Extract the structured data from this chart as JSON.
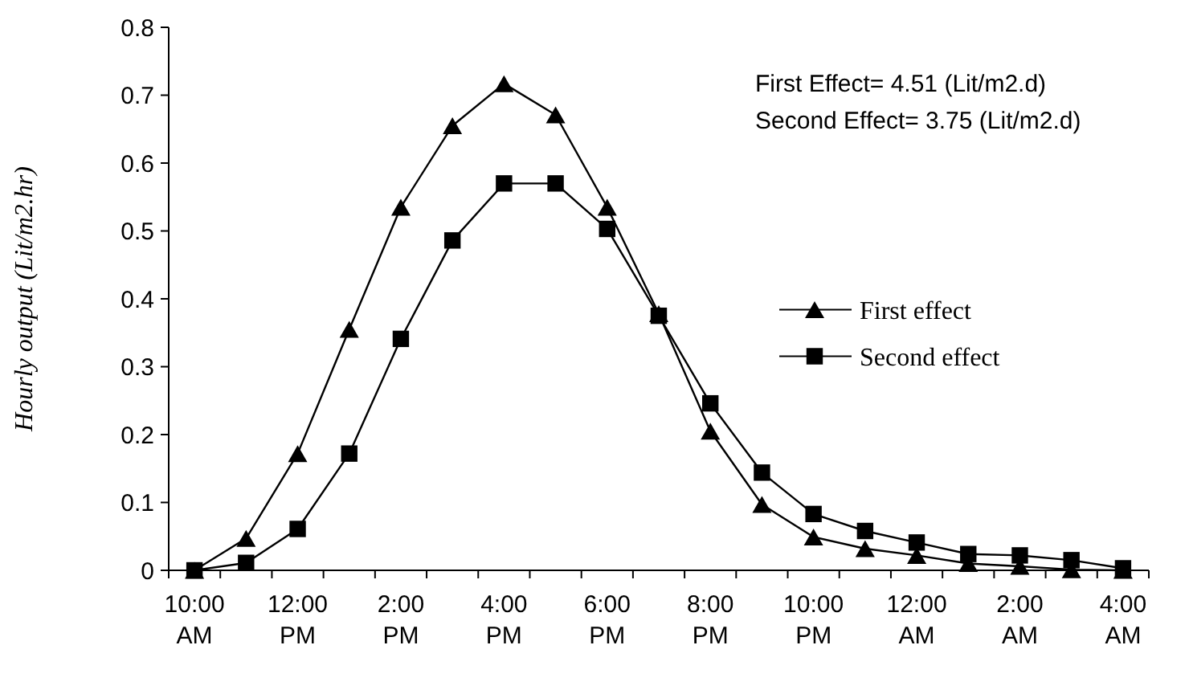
{
  "chart_data": {
    "type": "line",
    "ylabel": "Hourly output (Lit/m2.hr)",
    "categories": [
      "10:00 AM",
      null,
      "12:00 PM",
      null,
      "2:00 PM",
      null,
      "4:00 PM",
      null,
      "6:00 PM",
      null,
      "8:00 PM",
      null,
      "10:00 PM",
      null,
      "12:00 AM",
      null,
      "2:00 AM",
      null,
      "4:00 AM"
    ],
    "series": [
      {
        "name": "First effect",
        "color": "#000000",
        "marker": "triangle",
        "values": [
          0,
          0.047,
          0.172,
          0.355,
          0.535,
          0.655,
          0.717,
          0.671,
          0.535,
          0.378,
          0.205,
          0.097,
          0.049,
          0.032,
          0.022,
          0.01,
          0.006,
          0.001,
          0
        ]
      },
      {
        "name": "Second effect",
        "color": "#000000",
        "marker": "square",
        "values": [
          0,
          0.011,
          0.061,
          0.172,
          0.341,
          0.486,
          0.57,
          0.57,
          0.503,
          0.375,
          0.246,
          0.144,
          0.083,
          0.058,
          0.041,
          0.024,
          0.022,
          0.015,
          0.003
        ]
      }
    ],
    "ylim": [
      0,
      0.8
    ],
    "yticks": [
      0,
      0.1,
      0.2,
      0.3,
      0.4,
      0.5,
      0.6,
      0.7,
      0.8
    ],
    "grid": false,
    "legend": "right",
    "line_style": "solid",
    "annotations": [
      "First Effect= 4.51 (Lit/m2.d)",
      "Second Effect= 3.75 (Lit/m2.d)"
    ]
  }
}
